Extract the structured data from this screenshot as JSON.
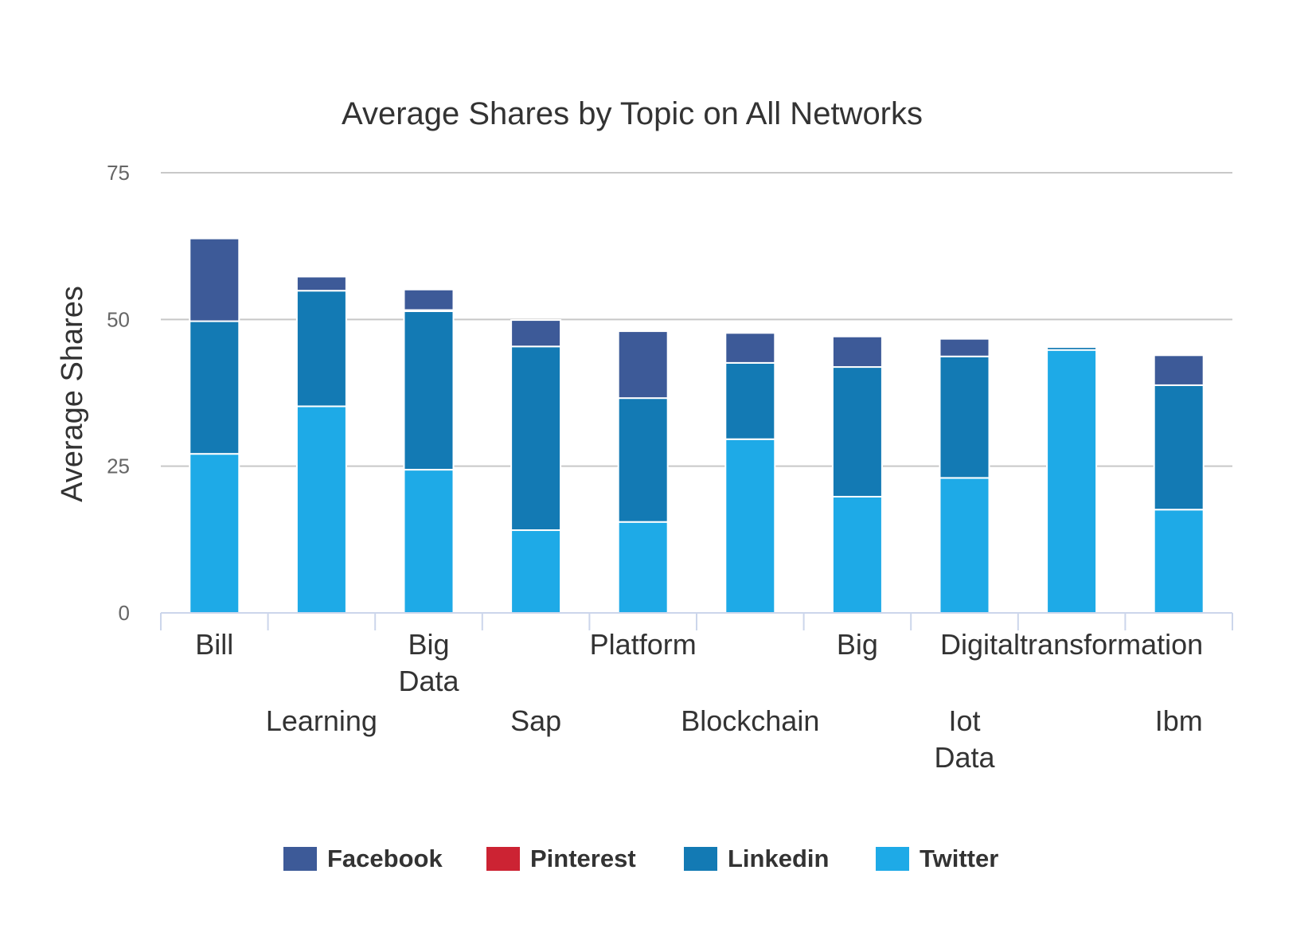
{
  "chart_data": {
    "type": "bar",
    "stacked": true,
    "title": "Average Shares by Topic on All Networks",
    "xlabel": "",
    "ylabel": "Average Shares",
    "ylim": [
      0,
      75
    ],
    "yticks": [
      0,
      25,
      50,
      75
    ],
    "grid": true,
    "legend_position": "bottom",
    "categories": [
      "Bill",
      "Learning",
      "Big Data",
      "Sap",
      "Platform",
      "Blockchain",
      "Big",
      "Iot Data",
      "Digitaltransformation",
      "Ibm"
    ],
    "category_lines": [
      [
        "Bill"
      ],
      [
        "Learning"
      ],
      [
        "Big",
        "Data"
      ],
      [
        "Sap"
      ],
      [
        "Platform"
      ],
      [
        "Blockchain"
      ],
      [
        "Big"
      ],
      [
        "Iot",
        "Data"
      ],
      [
        "Digitaltransformation"
      ],
      [
        "Ibm"
      ]
    ],
    "series": [
      {
        "name": "Twitter",
        "color": "#1eaae7",
        "values": [
          27.1,
          35.2,
          24.4,
          14.1,
          15.5,
          29.6,
          19.8,
          23.0,
          44.8,
          17.6
        ]
      },
      {
        "name": "Linkedin",
        "color": "#137ab4",
        "values": [
          22.6,
          19.7,
          27.0,
          31.3,
          21.1,
          13.0,
          22.1,
          20.7,
          0.5,
          21.2
        ]
      },
      {
        "name": "Pinterest",
        "color": "#cc2333",
        "values": [
          0,
          0,
          0.2,
          0,
          0,
          0,
          0,
          0,
          0,
          0
        ]
      },
      {
        "name": "Facebook",
        "color": "#3d5a98",
        "values": [
          14.1,
          2.4,
          3.5,
          4.5,
          11.4,
          5.1,
          5.2,
          3.0,
          0.1,
          5.1
        ]
      }
    ],
    "legend": [
      {
        "name": "Facebook",
        "color": "#3d5a98"
      },
      {
        "name": "Pinterest",
        "color": "#cc2333"
      },
      {
        "name": "Linkedin",
        "color": "#137ab4"
      },
      {
        "name": "Twitter",
        "color": "#1eaae7"
      }
    ]
  }
}
